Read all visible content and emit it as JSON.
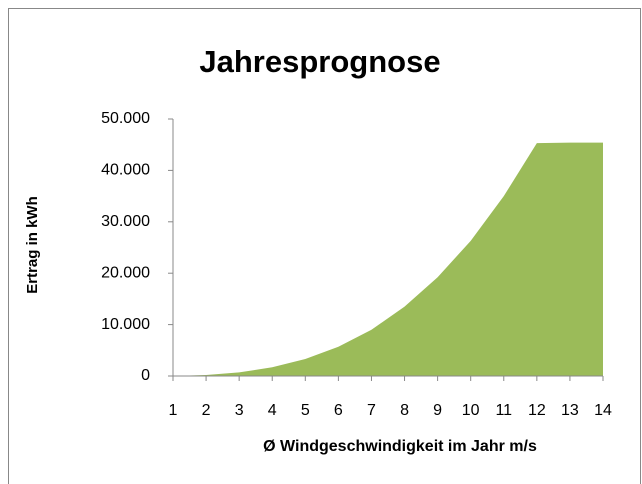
{
  "chart_data": {
    "type": "area",
    "title": "Jahresprognose",
    "x_label": "Ø Windgeschwindigkeit im Jahr m/s",
    "y_label": "Ertrag in kWh",
    "categories": [
      "1",
      "2",
      "3",
      "4",
      "5",
      "6",
      "7",
      "8",
      "9",
      "10",
      "11",
      "12",
      "13",
      "14"
    ],
    "values": [
      0,
      200,
      700,
      1700,
      3300,
      5700,
      9000,
      13500,
      19200,
      26300,
      35000,
      45300,
      45400,
      45400
    ],
    "color": "#9bbb59",
    "ylim": [
      0,
      50000
    ],
    "yticks": [
      0,
      {
        "value": 10000,
        "label": "10.000"
      },
      {
        "value": 20000,
        "label": "20.000"
      },
      {
        "value": 30000,
        "label": "30.000"
      },
      {
        "value": 40000,
        "label": "40.000"
      },
      {
        "value": 50000,
        "label": "50.000"
      }
    ],
    "grid": false
  }
}
